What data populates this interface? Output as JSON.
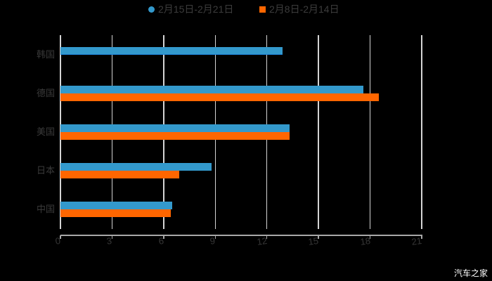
{
  "legend": {
    "series_a": "2月15日-2月21日",
    "series_b": "2月8日-2月14日",
    "series_a_marker": "circle",
    "series_b_marker": "square"
  },
  "watermark": "汽车之家",
  "colors": {
    "series_a": "#3399CC",
    "series_b": "#FF6600",
    "background": "#000000",
    "grid": "#D4D4D4",
    "axis": "#A8A8A8",
    "text": "#3A3A3A"
  },
  "chart_data": {
    "type": "bar",
    "orientation": "horizontal",
    "title": "",
    "xlabel": "",
    "ylabel": "",
    "categories": [
      "韩国",
      "德国",
      "美国",
      "日本",
      "中国"
    ],
    "series": [
      {
        "name": "2月15日-2月21日",
        "values": [
          12.9,
          17.6,
          13.3,
          8.8,
          6.5
        ]
      },
      {
        "name": "2月8日-2月14日",
        "values": [
          null,
          18.5,
          13.3,
          6.9,
          6.4
        ]
      }
    ],
    "xlim": [
      0,
      21
    ],
    "xticks": [
      0,
      3,
      6,
      9,
      12,
      15,
      18,
      21
    ],
    "grid": true,
    "legend_position": "top"
  }
}
